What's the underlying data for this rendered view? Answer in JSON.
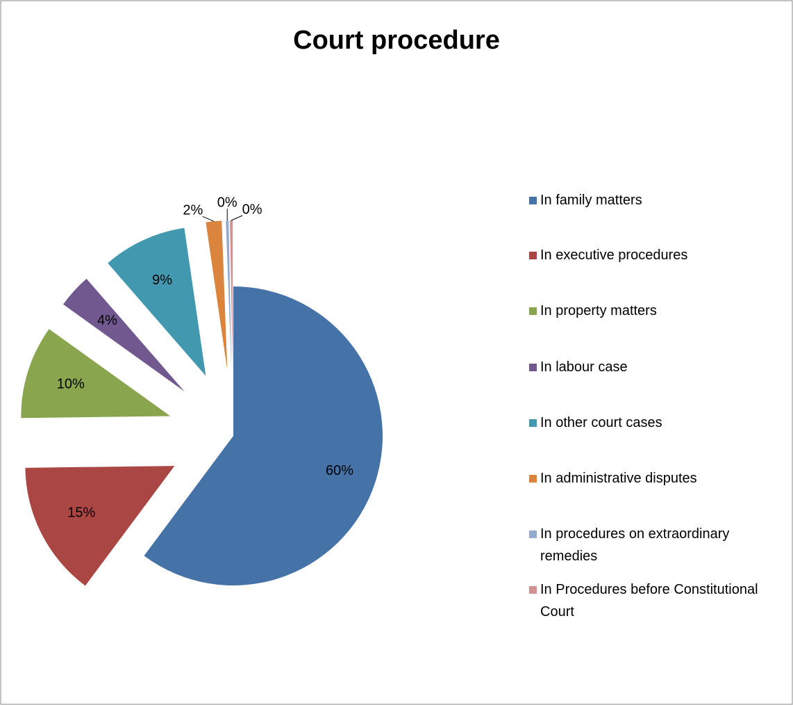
{
  "chart_data": {
    "type": "pie",
    "title": "Court procedure",
    "categories": [
      "In family matters",
      "In executive procedures",
      "In property matters",
      "In labour case",
      "In other court cases",
      "In administrative disputes",
      "In procedures on extraordinary remedies",
      "In Procedures before Constitutional Court"
    ],
    "values": [
      60.2,
      14.6,
      10.1,
      3.7,
      9.1,
      1.7,
      0.3,
      0.3
    ],
    "value_labels": [
      "60%",
      "15%",
      "10%",
      "4%",
      "9%",
      "2%",
      "0%",
      "0%"
    ],
    "colors": [
      "#4572a7",
      "#aa4643",
      "#89a54e",
      "#71588f",
      "#4198af",
      "#db843d",
      "#93a9cf",
      "#d19392"
    ],
    "legend": "right"
  }
}
